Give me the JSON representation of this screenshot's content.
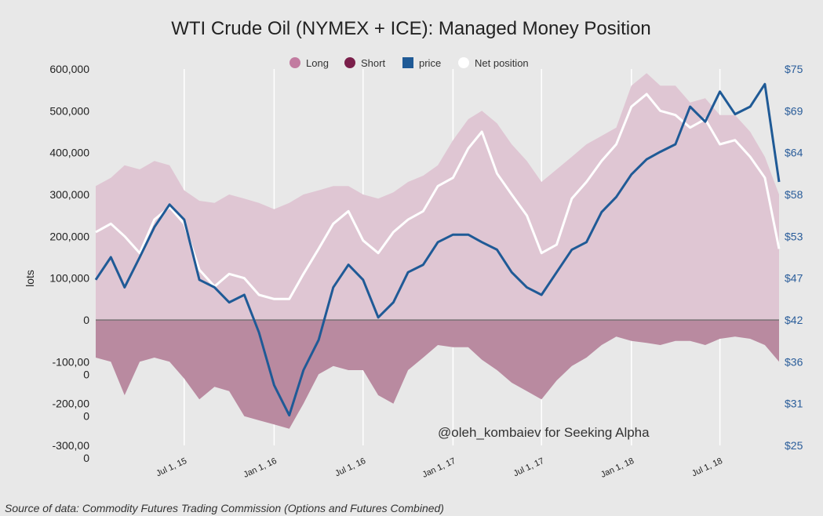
{
  "chart_data": {
    "type": "area",
    "title": "WTI Crude Oil (NYMEX + ICE): Managed Money Position",
    "ylabel": "lots",
    "y_left_range": [
      -300000,
      600000
    ],
    "y_left_ticks": [
      "600,000",
      "500,000",
      "400,000",
      "300,000",
      "200,000",
      "100,000",
      "0",
      "-100,00",
      "-200,00",
      "-300,00"
    ],
    "y_left_ticks_extra": [
      "0",
      "0",
      "0"
    ],
    "y_right_range": [
      25,
      75
    ],
    "y_right_ticks": [
      "$75",
      "$69",
      "$64",
      "$58",
      "$53",
      "$47",
      "$42",
      "$36",
      "$31",
      "$25"
    ],
    "x_range": [
      "2015-01-01",
      "2018-10-30"
    ],
    "x_ticks": [
      {
        "label": "Jul 1, 15",
        "date": "2015-07-01"
      },
      {
        "label": "Jan 1, 16",
        "date": "2016-01-01"
      },
      {
        "label": "Jul 1, 16",
        "date": "2016-07-01"
      },
      {
        "label": "Jan 1, 17",
        "date": "2017-01-01"
      },
      {
        "label": "Jul 1, 17",
        "date": "2017-07-01"
      },
      {
        "label": "Jan 1, 18",
        "date": "2018-01-01"
      },
      {
        "label": "Jul 1, 18",
        "date": "2018-07-01"
      }
    ],
    "legend": [
      {
        "name": "Long",
        "color": "#c27ba0"
      },
      {
        "name": "Short",
        "color": "#7a1f4a"
      },
      {
        "name": "price",
        "color": "#1f5a96"
      },
      {
        "name": "Net position",
        "color": "#ffffff"
      }
    ],
    "legend_position": "top-center",
    "grid": true,
    "series": [
      {
        "name": "Long",
        "axis": "left",
        "x": [
          "2015-01-01",
          "2015-02-01",
          "2015-03-01",
          "2015-04-01",
          "2015-05-01",
          "2015-06-01",
          "2015-07-01",
          "2015-08-01",
          "2015-09-01",
          "2015-10-01",
          "2015-11-01",
          "2015-12-01",
          "2016-01-01",
          "2016-02-01",
          "2016-03-01",
          "2016-04-01",
          "2016-05-01",
          "2016-06-01",
          "2016-07-01",
          "2016-08-01",
          "2016-09-01",
          "2016-10-01",
          "2016-11-01",
          "2016-12-01",
          "2017-01-01",
          "2017-02-01",
          "2017-03-01",
          "2017-04-01",
          "2017-05-01",
          "2017-06-01",
          "2017-07-01",
          "2017-08-01",
          "2017-09-01",
          "2017-10-01",
          "2017-11-01",
          "2017-12-01",
          "2018-01-01",
          "2018-02-01",
          "2018-03-01",
          "2018-04-01",
          "2018-05-01",
          "2018-06-01",
          "2018-07-01",
          "2018-08-01",
          "2018-09-01",
          "2018-10-01",
          "2018-10-30"
        ],
        "values": [
          320000,
          340000,
          370000,
          360000,
          380000,
          370000,
          310000,
          285000,
          280000,
          300000,
          290000,
          280000,
          265000,
          280000,
          300000,
          310000,
          320000,
          320000,
          300000,
          290000,
          305000,
          330000,
          345000,
          370000,
          430000,
          480000,
          500000,
          470000,
          420000,
          380000,
          330000,
          360000,
          390000,
          420000,
          440000,
          460000,
          560000,
          590000,
          560000,
          560000,
          520000,
          530000,
          490000,
          490000,
          450000,
          390000,
          300000
        ]
      },
      {
        "name": "Short",
        "axis": "left",
        "values": [
          -90000,
          -100000,
          -180000,
          -100000,
          -90000,
          -100000,
          -140000,
          -190000,
          -160000,
          -170000,
          -230000,
          -240000,
          -250000,
          -260000,
          -200000,
          -130000,
          -110000,
          -120000,
          -120000,
          -180000,
          -200000,
          -120000,
          -90000,
          -60000,
          -65000,
          -65000,
          -95000,
          -120000,
          -150000,
          -170000,
          -190000,
          -145000,
          -110000,
          -90000,
          -60000,
          -40000,
          -50000,
          -55000,
          -60000,
          -50000,
          -50000,
          -60000,
          -45000,
          -40000,
          -45000,
          -60000,
          -100000
        ]
      },
      {
        "name": "price",
        "axis": "right",
        "values": [
          47,
          50,
          46,
          50,
          54,
          57,
          55,
          47,
          46,
          44,
          45,
          40,
          33,
          29,
          35,
          39,
          46,
          49,
          47,
          42,
          44,
          48,
          49,
          52,
          53,
          53,
          52,
          51,
          48,
          46,
          45,
          48,
          51,
          52,
          56,
          58,
          61,
          63,
          64,
          65,
          70,
          68,
          72,
          69,
          70,
          73,
          60
        ]
      },
      {
        "name": "Net position",
        "axis": "left",
        "values": [
          210000,
          230000,
          200000,
          160000,
          240000,
          270000,
          230000,
          120000,
          80000,
          110000,
          100000,
          60000,
          50000,
          50000,
          110000,
          170000,
          230000,
          260000,
          190000,
          160000,
          210000,
          240000,
          260000,
          320000,
          340000,
          410000,
          450000,
          350000,
          300000,
          250000,
          160000,
          180000,
          290000,
          330000,
          380000,
          420000,
          510000,
          540000,
          500000,
          490000,
          460000,
          480000,
          420000,
          430000,
          390000,
          340000,
          170000
        ]
      }
    ]
  },
  "watermark": "@oleh_kombaiev for Seeking Alpha",
  "source": "Source of data: Commodity Futures Trading Commission (Options and Futures Combined)"
}
